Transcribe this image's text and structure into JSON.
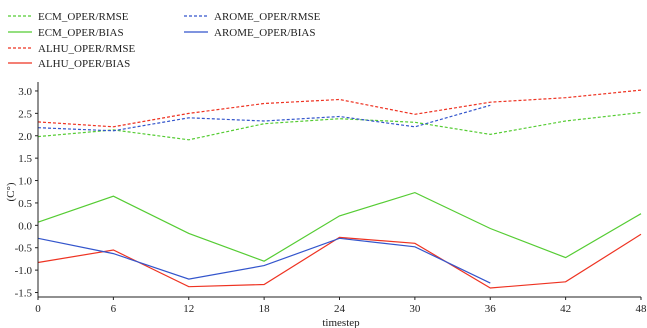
{
  "chart_data": {
    "type": "line",
    "title": "",
    "xlabel": "timestep",
    "ylabel": "(C°)",
    "x": [
      0,
      6,
      12,
      18,
      24,
      30,
      36,
      42,
      48
    ],
    "xlim": [
      0,
      48
    ],
    "ylim": [
      -1.6,
      3.2
    ],
    "xticks": [
      "0",
      "6",
      "12",
      "18",
      "24",
      "30",
      "36",
      "42",
      "48"
    ],
    "yticks": [
      "-1.5",
      "-1.0",
      "-0.5",
      "0.0",
      "0.5",
      "1.0",
      "1.5",
      "2.0",
      "2.5",
      "3.0"
    ],
    "grid": false,
    "legend_position": "top-left",
    "series": [
      {
        "name": "ECM_OPER/RMSE",
        "color": "#55cc33",
        "dash": "dashed",
        "values": [
          1.98,
          2.13,
          1.91,
          2.27,
          2.38,
          2.3,
          2.03,
          2.33,
          2.52
        ]
      },
      {
        "name": "ECM_OPER/BIAS",
        "color": "#55cc33",
        "dash": "solid",
        "values": [
          0.07,
          0.65,
          -0.18,
          -0.8,
          0.21,
          0.73,
          -0.07,
          -0.72,
          0.26
        ]
      },
      {
        "name": "ALHU_OPER/RMSE",
        "color": "#ee3322",
        "dash": "dashed",
        "values": [
          2.31,
          2.2,
          2.5,
          2.72,
          2.81,
          2.48,
          2.75,
          2.85,
          3.02
        ]
      },
      {
        "name": "ALHU_OPER/BIAS",
        "color": "#ee3322",
        "dash": "solid",
        "values": [
          -0.83,
          -0.55,
          -1.37,
          -1.32,
          -0.27,
          -0.4,
          -1.4,
          -1.26,
          -0.2
        ]
      },
      {
        "name": "AROME_OPER/RMSE",
        "color": "#3355cc",
        "dash": "dashed",
        "values": [
          2.18,
          2.11,
          2.4,
          2.33,
          2.43,
          2.2,
          2.68,
          null,
          null
        ]
      },
      {
        "name": "AROME_OPER/BIAS",
        "color": "#3355cc",
        "dash": "solid",
        "values": [
          -0.29,
          -0.63,
          -1.2,
          -0.9,
          -0.29,
          -0.48,
          -1.29,
          null,
          null
        ]
      }
    ]
  }
}
